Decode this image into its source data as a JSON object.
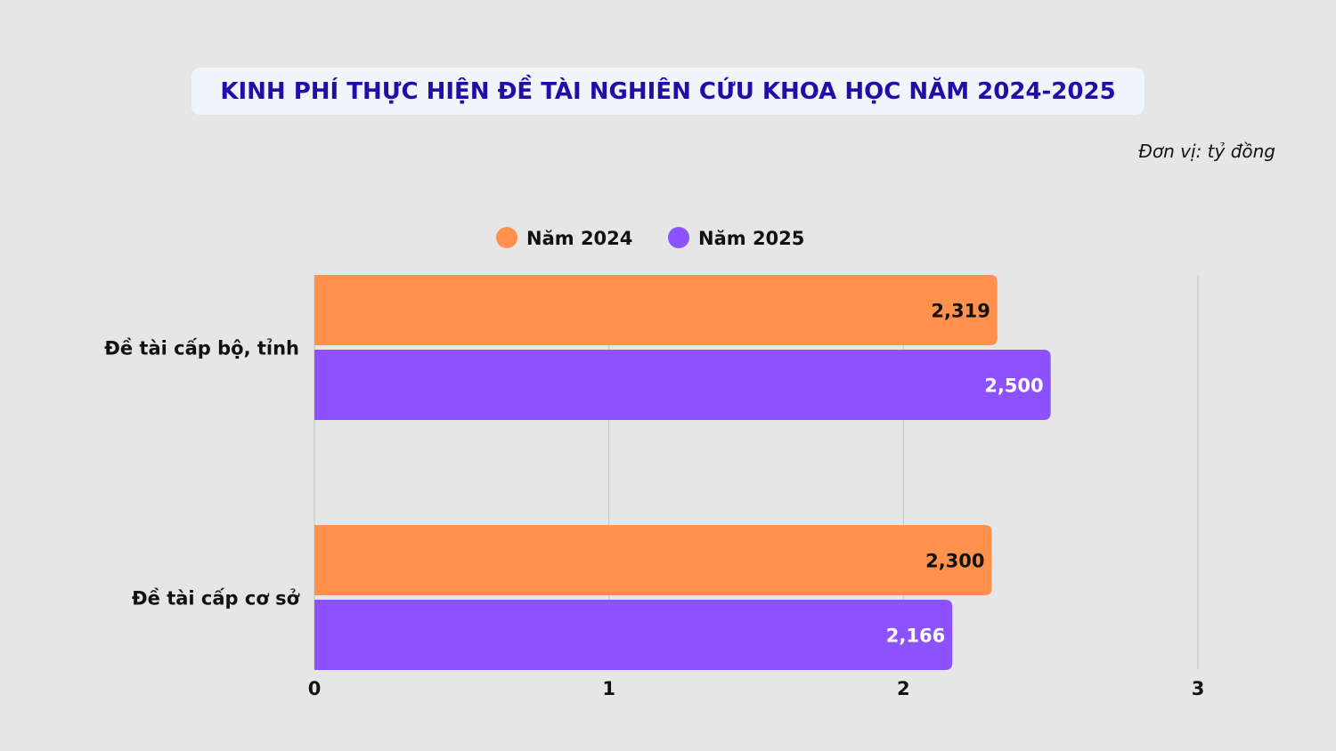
{
  "header": {
    "title": "KINH PHÍ THỰC HIỆN ĐỀ TÀI NGHIÊN CỨU KHOA HỌC NĂM 2024-2025",
    "unit": "Đơn vị: tỷ đồng"
  },
  "colors": {
    "series_2024": "#ff914d",
    "series_2025": "#8c52ff",
    "label_dark": "#111111",
    "label_light": "#ffffff"
  },
  "chart_data": {
    "type": "bar",
    "orientation": "horizontal",
    "title": "KINH PHÍ THỰC HIỆN ĐỀ TÀI NGHIÊN CỨU KHOA HỌC NĂM 2024-2025",
    "unit": "Đơn vị: tỷ đồng",
    "categories": [
      "Đề tài cấp bộ, tỉnh",
      "Đề tài cấp cơ sở"
    ],
    "series": [
      {
        "name": "Năm 2024",
        "values": [
          2.319,
          2.3
        ],
        "labels": [
          "2,319",
          "2,300"
        ]
      },
      {
        "name": "Năm 2025",
        "values": [
          2.5,
          2.166
        ],
        "labels": [
          "2,500",
          "2,166"
        ]
      }
    ],
    "xlim": [
      0,
      3
    ],
    "ticks": [
      "0",
      "1",
      "2",
      "3"
    ],
    "grid": true,
    "legend_position": "top-center"
  }
}
